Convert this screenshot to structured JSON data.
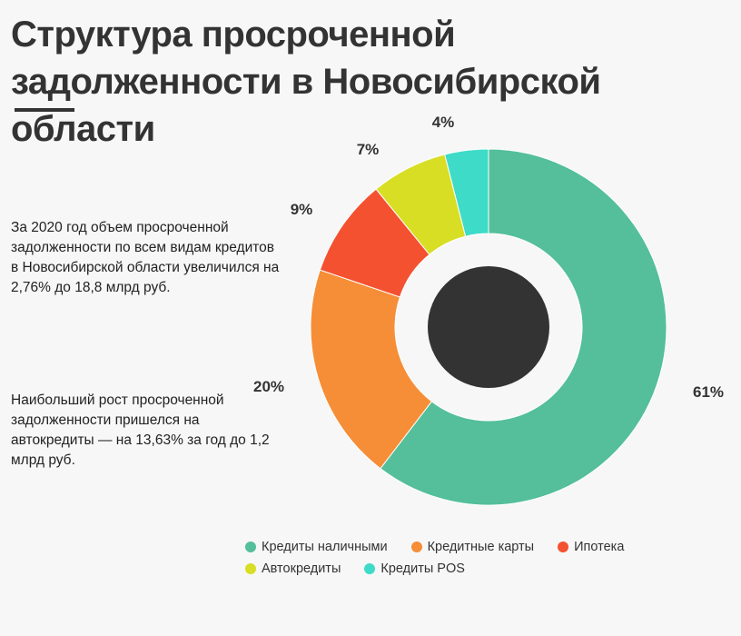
{
  "title": "Структура просроченной задолженности в Новосибирской области",
  "notes": [
    "За 2020 год объем просроченной задолженности по всем видам кредитов в Новосибирской области увеличился на 2,76% до 18,8 млрд руб.",
    "Наибольший рост просроченной задолженности пришелся на автокредиты — на 13,63% за год до 1,2 млрд руб."
  ],
  "colors": {
    "background": "#f7f7f7",
    "center": "#333333"
  },
  "chart_data": {
    "type": "pie",
    "variant": "donut",
    "unit": "%",
    "slices": [
      {
        "label": "Кредиты наличными",
        "value": 61,
        "display": "61%",
        "color": "#54bf9a"
      },
      {
        "label": "Кредитные карты",
        "value": 20,
        "display": "20%",
        "color": "#f58e37"
      },
      {
        "label": "Ипотека",
        "value": 9,
        "display": "9%",
        "color": "#f45131"
      },
      {
        "label": "Автокредиты",
        "value": 7,
        "display": "7%",
        "color": "#d8de24"
      },
      {
        "label": "Кредиты POS",
        "value": 4,
        "display": "4%",
        "color": "#3edbc8"
      }
    ],
    "legend_position": "bottom"
  }
}
